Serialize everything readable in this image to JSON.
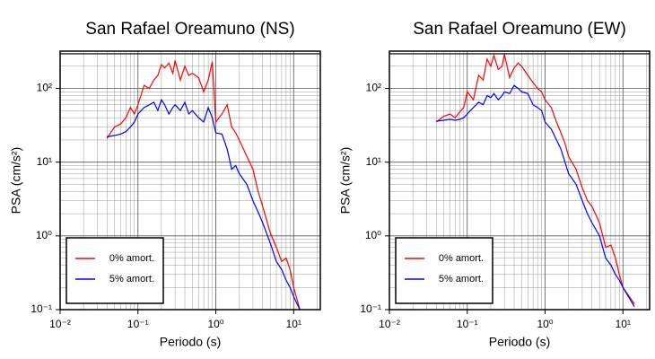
{
  "chart_data": [
    {
      "type": "line",
      "title": "San Rafael Oreamuno (NS)",
      "x_label": "Periodo (s)",
      "y_label": "PSA (cm/s²)",
      "log_x": true,
      "log_y": true,
      "grid": true,
      "minor_grid": true,
      "legend": "lower left",
      "xlim": [
        0.01,
        22
      ],
      "ylim": [
        0.1,
        320
      ],
      "xticks": [
        {
          "value": 0.01,
          "label": "10⁻²"
        },
        {
          "value": 0.1,
          "label": "10⁻¹"
        },
        {
          "value": 1,
          "label": "10⁰"
        },
        {
          "value": 10,
          "label": "10¹"
        }
      ],
      "yticks": [
        {
          "value": 0.1,
          "label": "10⁻¹"
        },
        {
          "value": 1,
          "label": "10⁰"
        },
        {
          "value": 10,
          "label": "10¹"
        },
        {
          "value": 100,
          "label": "10²"
        }
      ],
      "x": [
        0.04,
        0.05,
        0.06,
        0.07,
        0.08,
        0.09,
        0.1,
        0.12,
        0.14,
        0.16,
        0.18,
        0.2,
        0.22,
        0.25,
        0.28,
        0.3,
        0.35,
        0.4,
        0.45,
        0.5,
        0.6,
        0.7,
        0.8,
        0.9,
        1.0,
        1.2,
        1.4,
        1.6,
        1.8,
        2.0,
        2.5,
        3.0,
        3.5,
        4.0,
        5.0,
        6.0,
        7.0,
        8.0,
        9.0,
        10,
        12
      ],
      "series": [
        {
          "name": "0% amort.",
          "color": "#ff0000",
          "values": [
            21,
            30,
            33,
            40,
            55,
            45,
            60,
            110,
            100,
            130,
            150,
            210,
            190,
            220,
            160,
            240,
            130,
            200,
            150,
            160,
            140,
            90,
            130,
            230,
            35,
            45,
            60,
            30,
            25,
            20,
            12,
            8,
            4,
            2.5,
            1.1,
            0.7,
            0.45,
            0.5,
            0.35,
            0.2,
            0.1
          ]
        },
        {
          "name": "5% amort.",
          "color": "#0000ff",
          "values": [
            22,
            23,
            24,
            26,
            30,
            35,
            45,
            55,
            60,
            65,
            50,
            70,
            60,
            45,
            55,
            60,
            50,
            65,
            45,
            50,
            40,
            35,
            55,
            40,
            25,
            24,
            15,
            8,
            9,
            7,
            5,
            3,
            2.1,
            1.5,
            0.8,
            0.45,
            0.35,
            0.25,
            0.2,
            0.15,
            0.1
          ]
        }
      ]
    },
    {
      "type": "line",
      "title": "San Rafael Oreamuno (EW)",
      "x_label": "Periodo (s)",
      "y_label": "PSA (cm/s²)",
      "log_x": true,
      "log_y": true,
      "grid": true,
      "minor_grid": true,
      "legend": "lower left",
      "xlim": [
        0.01,
        22
      ],
      "ylim": [
        0.1,
        320
      ],
      "xticks": [
        {
          "value": 0.01,
          "label": "10⁻²"
        },
        {
          "value": 0.1,
          "label": "10⁻¹"
        },
        {
          "value": 1,
          "label": "10⁰"
        },
        {
          "value": 10,
          "label": "10¹"
        }
      ],
      "yticks": [
        {
          "value": 0.1,
          "label": "10⁻¹"
        },
        {
          "value": 1,
          "label": "10⁰"
        },
        {
          "value": 10,
          "label": "10¹"
        },
        {
          "value": 100,
          "label": "10²"
        }
      ],
      "x": [
        0.04,
        0.05,
        0.06,
        0.07,
        0.08,
        0.09,
        0.1,
        0.12,
        0.14,
        0.16,
        0.18,
        0.2,
        0.22,
        0.25,
        0.28,
        0.3,
        0.35,
        0.4,
        0.45,
        0.5,
        0.6,
        0.7,
        0.8,
        0.9,
        1.0,
        1.2,
        1.4,
        1.6,
        1.8,
        2.0,
        2.5,
        3.0,
        3.5,
        4.0,
        5.0,
        6.0,
        7.0,
        8.0,
        9.0,
        10,
        14
      ],
      "series": [
        {
          "name": "0% amort.",
          "color": "#ff0000",
          "values": [
            35,
            42,
            45,
            40,
            48,
            55,
            90,
            70,
            150,
            130,
            250,
            200,
            280,
            180,
            200,
            290,
            140,
            190,
            220,
            200,
            150,
            120,
            100,
            90,
            70,
            55,
            35,
            25,
            18,
            12,
            8,
            4.5,
            3,
            2.5,
            1.5,
            0.7,
            0.75,
            0.5,
            0.3,
            0.2,
            0.12
          ]
        },
        {
          "name": "5% amort.",
          "color": "#0000ff",
          "values": [
            36,
            37,
            38,
            37,
            38,
            40,
            45,
            55,
            65,
            60,
            80,
            75,
            85,
            70,
            80,
            90,
            85,
            110,
            100,
            90,
            85,
            60,
            55,
            50,
            35,
            28,
            20,
            15,
            10,
            7,
            5,
            3,
            2,
            1.5,
            1,
            0.5,
            0.4,
            0.3,
            0.25,
            0.2,
            0.11
          ]
        }
      ]
    }
  ]
}
